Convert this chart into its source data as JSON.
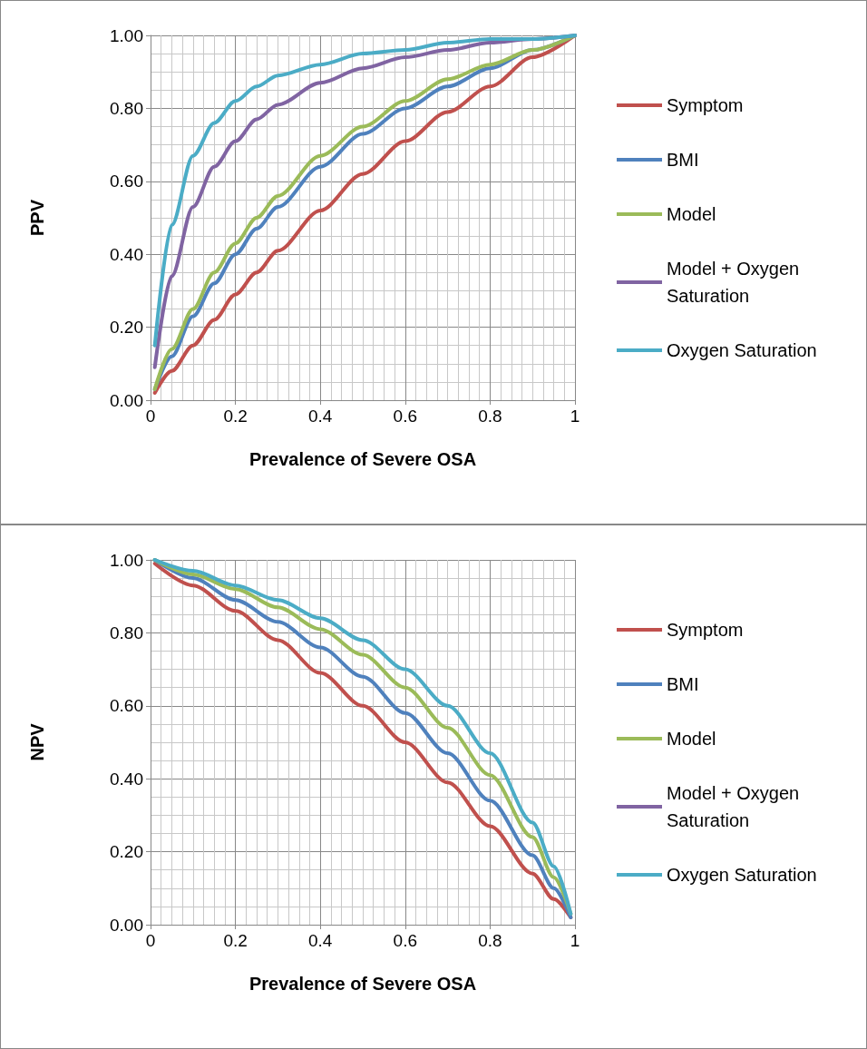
{
  "chart_data": [
    {
      "type": "line",
      "ylabel": "PPV",
      "xlabel": "Prevalence of Severe OSA",
      "x": [
        0.01,
        0.05,
        0.1,
        0.15,
        0.2,
        0.25,
        0.3,
        0.4,
        0.5,
        0.6,
        0.7,
        0.8,
        0.9,
        1
      ],
      "xlim": [
        0,
        1
      ],
      "ylim": [
        0,
        1
      ],
      "xticks": [
        0,
        0.2,
        0.4,
        0.6,
        0.8,
        1
      ],
      "yticks": [
        {
          "value": 0,
          "label": "0.00"
        },
        {
          "value": 0.2,
          "label": "0.20"
        },
        {
          "value": 0.4,
          "label": "0.40"
        },
        {
          "value": 0.6,
          "label": "0.60"
        },
        {
          "value": 0.8,
          "label": "0.80"
        },
        {
          "value": 1,
          "label": "1.00"
        }
      ],
      "grid": true,
      "legend": "right",
      "marker": "none",
      "line_style": "solid",
      "series": [
        {
          "name": "Symptom",
          "color": "#c0504d",
          "values": [
            0.02,
            0.08,
            0.15,
            0.22,
            0.29,
            0.35,
            0.41,
            0.52,
            0.62,
            0.71,
            0.79,
            0.86,
            0.94,
            1
          ]
        },
        {
          "name": "BMI",
          "color": "#4f81bd",
          "values": [
            0.03,
            0.12,
            0.23,
            0.32,
            0.4,
            0.47,
            0.53,
            0.64,
            0.73,
            0.8,
            0.86,
            0.91,
            0.96,
            1
          ]
        },
        {
          "name": "Model",
          "color": "#9bbb59",
          "values": [
            0.03,
            0.14,
            0.25,
            0.35,
            0.43,
            0.5,
            0.56,
            0.67,
            0.75,
            0.82,
            0.88,
            0.92,
            0.96,
            1
          ]
        },
        {
          "name": "Model + Oxygen Saturation",
          "color": "#8064a2",
          "values": [
            0.09,
            0.34,
            0.53,
            0.64,
            0.71,
            0.77,
            0.81,
            0.87,
            0.91,
            0.94,
            0.96,
            0.98,
            0.99,
            1
          ]
        },
        {
          "name": "Oxygen Saturation",
          "color": "#4bacc6",
          "values": [
            0.15,
            0.48,
            0.67,
            0.76,
            0.82,
            0.86,
            0.89,
            0.92,
            0.95,
            0.96,
            0.98,
            0.99,
            0.99,
            1
          ]
        }
      ]
    },
    {
      "type": "line",
      "ylabel": "NPV",
      "xlabel": "Prevalence of Severe OSA",
      "x": [
        0.01,
        0.1,
        0.2,
        0.3,
        0.4,
        0.5,
        0.6,
        0.7,
        0.8,
        0.9,
        0.95,
        0.99
      ],
      "xlim": [
        0,
        1
      ],
      "ylim": [
        0,
        1
      ],
      "xticks": [
        0,
        0.2,
        0.4,
        0.6,
        0.8,
        1
      ],
      "yticks": [
        {
          "value": 0,
          "label": "0.00"
        },
        {
          "value": 0.2,
          "label": "0.20"
        },
        {
          "value": 0.4,
          "label": "0.40"
        },
        {
          "value": 0.6,
          "label": "0.60"
        },
        {
          "value": 0.8,
          "label": "0.80"
        },
        {
          "value": 1,
          "label": "1.00"
        }
      ],
      "grid": true,
      "legend": "right",
      "marker": "none",
      "line_style": "solid",
      "series": [
        {
          "name": "Symptom",
          "color": "#c0504d",
          "values": [
            0.99,
            0.93,
            0.86,
            0.78,
            0.69,
            0.6,
            0.5,
            0.39,
            0.27,
            0.14,
            0.07,
            0.02
          ]
        },
        {
          "name": "BMI",
          "color": "#4f81bd",
          "values": [
            1,
            0.95,
            0.89,
            0.83,
            0.76,
            0.68,
            0.58,
            0.47,
            0.34,
            0.19,
            0.1,
            0.02
          ]
        },
        {
          "name": "Model",
          "color": "#9bbb59",
          "values": [
            1,
            0.96,
            0.92,
            0.87,
            0.81,
            0.74,
            0.65,
            0.54,
            0.41,
            0.24,
            0.13,
            0.03
          ]
        },
        {
          "name": "Model + Oxygen Saturation",
          "color": "#8064a2",
          "values": [
            null,
            null,
            null,
            null,
            null,
            null,
            null,
            null,
            null,
            null,
            null,
            null
          ]
        },
        {
          "name": "Oxygen Saturation",
          "color": "#4bacc6",
          "values": [
            1,
            0.97,
            0.93,
            0.89,
            0.84,
            0.78,
            0.7,
            0.6,
            0.47,
            0.28,
            0.16,
            0.03
          ]
        }
      ]
    }
  ]
}
